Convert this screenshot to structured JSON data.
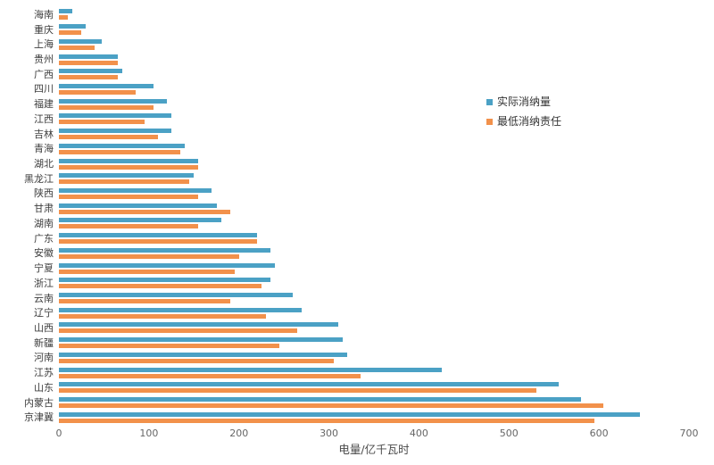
{
  "chart_data": {
    "type": "bar",
    "orientation": "horizontal",
    "title": "",
    "xlabel": "电量/亿千瓦时",
    "ylabel": "",
    "xlim": [
      0,
      700
    ],
    "xticks": [
      0,
      100,
      200,
      300,
      400,
      500,
      600,
      700
    ],
    "grid": false,
    "legend_position": "middle-right",
    "categories": [
      "海南",
      "重庆",
      "上海",
      "贵州",
      "广西",
      "四川",
      "福建",
      "江西",
      "吉林",
      "青海",
      "湖北",
      "黑龙江",
      "陕西",
      "甘肃",
      "湖南",
      "广东",
      "安徽",
      "宁夏",
      "浙江",
      "云南",
      "辽宁",
      "山西",
      "新疆",
      "河南",
      "江苏",
      "山东",
      "内蒙古",
      "京津冀"
    ],
    "series": [
      {
        "name": "实际消纳量",
        "color": "#4BA1C5",
        "values": [
          15,
          30,
          48,
          65,
          70,
          105,
          120,
          125,
          125,
          140,
          155,
          150,
          170,
          175,
          180,
          220,
          235,
          240,
          235,
          260,
          270,
          310,
          315,
          320,
          425,
          555,
          580,
          645
        ]
      },
      {
        "name": "最低消纳责任",
        "color": "#F2914B",
        "values": [
          10,
          25,
          40,
          65,
          65,
          85,
          105,
          95,
          110,
          135,
          155,
          145,
          155,
          190,
          155,
          220,
          200,
          195,
          225,
          190,
          230,
          265,
          245,
          305,
          335,
          530,
          605,
          595
        ]
      }
    ]
  }
}
